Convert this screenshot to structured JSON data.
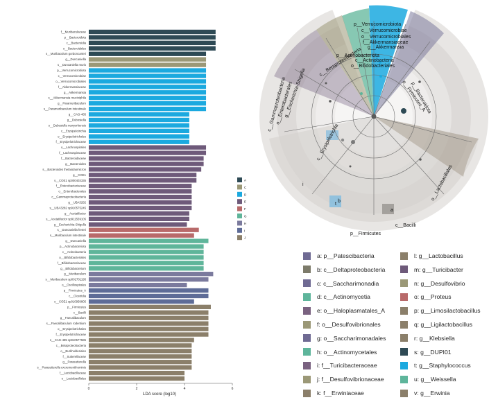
{
  "colors": {
    "A": "#2e4a55",
    "C": "#9b9877",
    "D": "#1ba9df",
    "E": "#6e5a7a",
    "F": "#b86a6a",
    "G": "#5fb59a",
    "H": "#7b7a9d",
    "I": "#5e6c97",
    "J": "#8b7f6a"
  },
  "chart_data": {
    "type": "bar",
    "orientation": "horizontal",
    "xlabel": "LDA score (log10)",
    "ylabel": "",
    "xlim": [
      0,
      6
    ],
    "xticks": [
      0,
      2,
      4,
      6
    ],
    "legend": [
      "A",
      "C",
      "D",
      "E",
      "F",
      "G",
      "H",
      "I",
      "J"
    ],
    "bars": [
      {
        "label": "f__Muribaculaceae",
        "value": 5.3,
        "group": "A"
      },
      {
        "label": "p__Bacteroidota",
        "value": 5.3,
        "group": "A"
      },
      {
        "label": "c__Bacteroidia",
        "value": 5.3,
        "group": "A"
      },
      {
        "label": "o__Bacteroidales",
        "value": 5.3,
        "group": "A"
      },
      {
        "label": "s__Muribaculum gordoncarteri",
        "value": 4.9,
        "group": "A"
      },
      {
        "label": "g__Duncaniella",
        "value": 4.9,
        "group": "C"
      },
      {
        "label": "s__Duncaniella muris",
        "value": 4.9,
        "group": "C"
      },
      {
        "label": "p__Verrucomicrobiota",
        "value": 4.9,
        "group": "D"
      },
      {
        "label": "c__Verrucomicrobiae",
        "value": 4.9,
        "group": "D"
      },
      {
        "label": "o__Verrucomicrobiales",
        "value": 4.9,
        "group": "D"
      },
      {
        "label": "f__Akkermansiaceae",
        "value": 4.9,
        "group": "D"
      },
      {
        "label": "g__Akkermansia",
        "value": 4.9,
        "group": "D"
      },
      {
        "label": "s__Akkermansia muciniphila",
        "value": 4.9,
        "group": "D"
      },
      {
        "label": "g__Paramuribaculum",
        "value": 4.9,
        "group": "D"
      },
      {
        "label": "s__Paramuribaculum intestinale",
        "value": 4.9,
        "group": "D"
      },
      {
        "label": "g__CAG-485",
        "value": 4.2,
        "group": "D"
      },
      {
        "label": "g__Dubosiella",
        "value": 4.2,
        "group": "D"
      },
      {
        "label": "s__Dubosiella newyorkensis",
        "value": 4.2,
        "group": "D"
      },
      {
        "label": "c__Erysipelotrichia",
        "value": 4.2,
        "group": "D"
      },
      {
        "label": "o__Erysipelotrichales",
        "value": 4.2,
        "group": "D"
      },
      {
        "label": "f__Erysipelotrichaceae",
        "value": 4.2,
        "group": "D"
      },
      {
        "label": "o__Lachnospirales",
        "value": 4.9,
        "group": "E"
      },
      {
        "label": "f__Lachnospiraceae",
        "value": 4.9,
        "group": "E"
      },
      {
        "label": "f__Bacteroidaceae",
        "value": 4.8,
        "group": "E"
      },
      {
        "label": "g__Bacteroides",
        "value": 4.8,
        "group": "E"
      },
      {
        "label": "s__Bacteroides thetaiotaomicron",
        "value": 4.7,
        "group": "E"
      },
      {
        "label": "g__COE1",
        "value": 4.5,
        "group": "E"
      },
      {
        "label": "s__COE1 sp000403335",
        "value": 4.5,
        "group": "E"
      },
      {
        "label": "f__Enterobacteriaceae",
        "value": 4.3,
        "group": "E"
      },
      {
        "label": "o__Enterobacterales",
        "value": 4.3,
        "group": "E"
      },
      {
        "label": "c__Gammaproteobacteria",
        "value": 4.3,
        "group": "E"
      },
      {
        "label": "g__UBA3282",
        "value": 4.3,
        "group": "E"
      },
      {
        "label": "s__UBA3282 sp910575245",
        "value": 4.3,
        "group": "E"
      },
      {
        "label": "g__Acetatifactor",
        "value": 4.2,
        "group": "E"
      },
      {
        "label": "s__Acetatifactor sp911559105",
        "value": 4.2,
        "group": "E"
      },
      {
        "label": "g__Escherichia-Shigella",
        "value": 4.1,
        "group": "E"
      },
      {
        "label": "s__Duncaniella freteri",
        "value": 4.6,
        "group": "F"
      },
      {
        "label": "s__Muribaculum intestinale",
        "value": 4.4,
        "group": "F"
      },
      {
        "label": "g__Duncaniella",
        "value": 5.0,
        "group": "G"
      },
      {
        "label": "p__Actinobacteriota",
        "value": 4.8,
        "group": "G"
      },
      {
        "label": "c__Actinobacteria",
        "value": 4.8,
        "group": "G"
      },
      {
        "label": "o__Bifidobacteriales",
        "value": 4.8,
        "group": "G"
      },
      {
        "label": "f__Bifidobacteriaceae",
        "value": 4.8,
        "group": "G"
      },
      {
        "label": "g__Bifidobacterium",
        "value": 4.8,
        "group": "G"
      },
      {
        "label": "g__Muribaculum",
        "value": 5.2,
        "group": "H"
      },
      {
        "label": "s__Muribaculum sp001701195",
        "value": 5.0,
        "group": "H"
      },
      {
        "label": "o__Oscillospirales",
        "value": 4.1,
        "group": "H"
      },
      {
        "label": "p__Firmicutes_A",
        "value": 5.0,
        "group": "I"
      },
      {
        "label": "c__Clostridia",
        "value": 5.0,
        "group": "I"
      },
      {
        "label": "s__COE1 sp010959805",
        "value": 4.4,
        "group": "I"
      },
      {
        "label": "p__Firmicutes",
        "value": 5.1,
        "group": "J"
      },
      {
        "label": "c__Bacilli",
        "value": 5.0,
        "group": "J"
      },
      {
        "label": "g__Faecalibaculum",
        "value": 5.0,
        "group": "J"
      },
      {
        "label": "s__Faecalibaculum rodentium",
        "value": 5.0,
        "group": "J"
      },
      {
        "label": "o__Erysipelotrichales",
        "value": 5.0,
        "group": "J"
      },
      {
        "label": "f__Erysipelotrichaceae",
        "value": 5.0,
        "group": "J"
      },
      {
        "label": "s__CAG-485 sp910577585",
        "value": 4.4,
        "group": "J"
      },
      {
        "label": "c__Betaproteobacteria",
        "value": 4.3,
        "group": "J"
      },
      {
        "label": "o__Burkholderiales",
        "value": 4.3,
        "group": "J"
      },
      {
        "label": "f__Sutterellaceae",
        "value": 4.3,
        "group": "J"
      },
      {
        "label": "g__Parasutterella",
        "value": 4.3,
        "group": "J"
      },
      {
        "label": "s__Parasutterella excrementihominis",
        "value": 4.3,
        "group": "J"
      },
      {
        "label": "f__Lactobacillaceae",
        "value": 4.0,
        "group": "J"
      },
      {
        "label": "o__Lactobacillales",
        "value": 4.0,
        "group": "J"
      }
    ]
  },
  "cladogram": {
    "labels": {
      "verrucomicrobiota": "p__Verrucomicrobiota",
      "verrucomicrobiae": "c__Verrucomicrobiae",
      "verrucomicrobiales": "o__Verrucomicrobiales",
      "akkermansiaceae": "f__Akkermansiaceae",
      "akkermansia": "g__Akkermansia",
      "actinobacteriota": "p__Actinobacteriota",
      "actinobacteria": "c__Actinobacteria",
      "bifidobacteriales": "o__Bifidobacteriales",
      "betaproteobacteria": "c__Betaproteobacteria",
      "firmicutes_a": "p__Firmicutes_A",
      "bacteroidota": "p__Bacteroidota",
      "gammaproteobacteria": "c__Gammaproteobacteria",
      "enterobacterales": "o__Enterobacterales",
      "escherichia": "g__Escherichia-Shigella",
      "erysipelotrichia": "c__Erysipelotrichia",
      "lactobacillales": "o__Lactobacillales",
      "bacilli": "c__Bacilli",
      "firmicutes": "p__Firmicutes",
      "mark_a": "a",
      "mark_b": "b",
      "mark_i": "i",
      "mark_t": "t"
    },
    "legend": [
      {
        "text": "a: p__Patescibacteria",
        "color": "#6f6a93"
      },
      {
        "text": "b: c__Deltaproteobacteria",
        "color": "#7d7b6a"
      },
      {
        "text": "c: c__Saccharimonadia",
        "color": "#6f6a93"
      },
      {
        "text": "d: c__Actinomycetia",
        "color": "#5eb59b"
      },
      {
        "text": "e: o__Haloplasmatales_A",
        "color": "#7a6280"
      },
      {
        "text": "f: o__Desulfovibrionales",
        "color": "#9b9877"
      },
      {
        "text": "g: o__Saccharimonadales",
        "color": "#6f6a93"
      },
      {
        "text": "h: o__Actinomycetales",
        "color": "#5eb59b"
      },
      {
        "text": "i: f__Turicibacteraceae",
        "color": "#7a6280"
      },
      {
        "text": "j: f__Desulfovibrionaceae",
        "color": "#9b9877"
      },
      {
        "text": "k: f__Erwiniaceae",
        "color": "#8b7f6a"
      },
      {
        "text": "l: g__Lactobacillus",
        "color": "#8b7f6a"
      },
      {
        "text": "m: g__Turicibacter",
        "color": "#6e5a7a"
      },
      {
        "text": "n: g__Desulfovibrio",
        "color": "#9b9877"
      },
      {
        "text": "o: g__Proteus",
        "color": "#b86a6a"
      },
      {
        "text": "p: g__Limosilactobacillus",
        "color": "#8b7f6a"
      },
      {
        "text": "q: g__Ligilactobacillus",
        "color": "#8b7f6a"
      },
      {
        "text": "r: g__Klebsiella",
        "color": "#8b7f6a"
      },
      {
        "text": "s: g__DUPI01",
        "color": "#2e4a55"
      },
      {
        "text": "t: g__Staphylococcus",
        "color": "#1ba9df"
      },
      {
        "text": "u: g__Weissella",
        "color": "#5eb59b"
      },
      {
        "text": "v: g__Erwinia",
        "color": "#8b7f6a"
      }
    ]
  }
}
